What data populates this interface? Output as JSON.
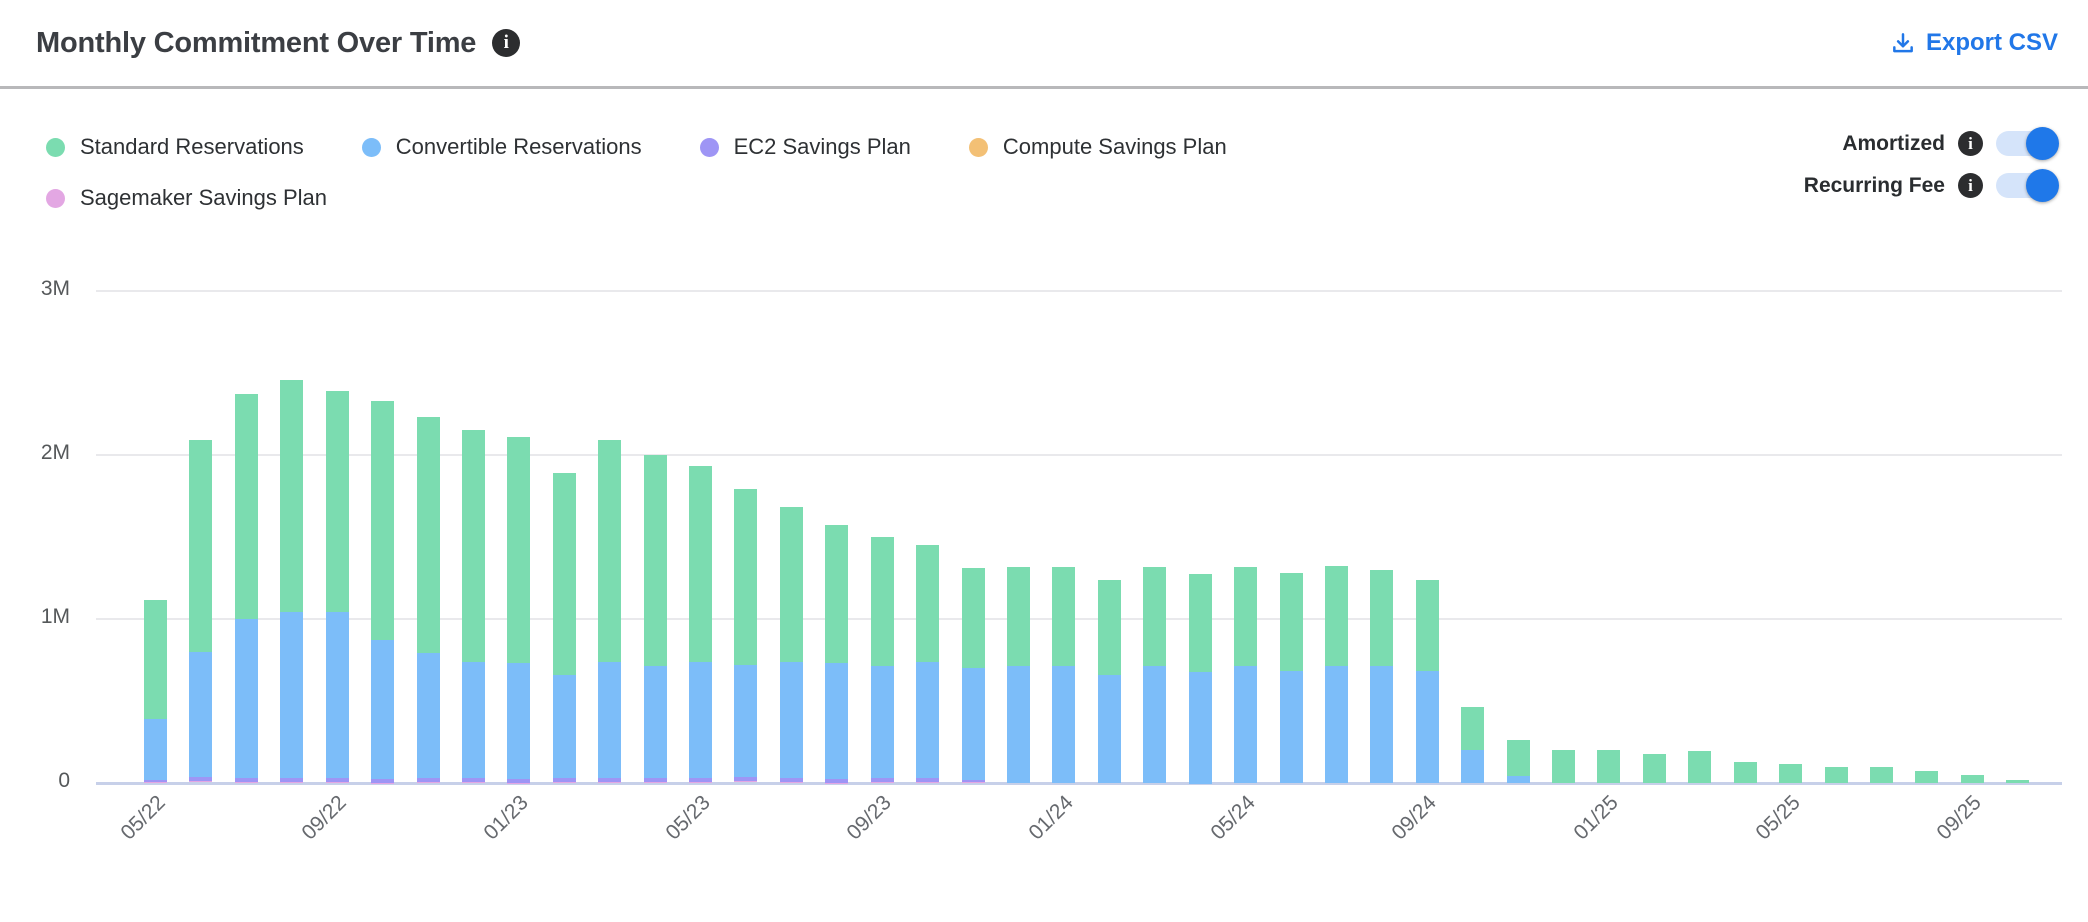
{
  "header": {
    "title": "Monthly Commitment Over Time",
    "export_label": "Export CSV"
  },
  "legend": {
    "items": [
      {
        "label": "Standard Reservations",
        "color": "#7bdcb0"
      },
      {
        "label": "Convertible Reservations",
        "color": "#7cbdf9"
      },
      {
        "label": "EC2 Savings Plan",
        "color": "#9e95f5"
      },
      {
        "label": "Compute Savings Plan",
        "color": "#f3c075"
      },
      {
        "label": "Sagemaker Savings Plan",
        "color": "#e3a7e3"
      }
    ]
  },
  "toggles": [
    {
      "label": "Amortized",
      "state": "on"
    },
    {
      "label": "Recurring Fee",
      "state": "on"
    }
  ],
  "accent_colors": {
    "link_blue": "#2177e8",
    "toggle_track": "#d5e4fa",
    "toggle_knob": "#1f78e9",
    "info_icon_bg": "#2c2d2f"
  },
  "chart_data": {
    "type": "bar",
    "stacked": true,
    "title": "Monthly Commitment Over Time",
    "xlabel": "",
    "ylabel": "",
    "ylim": [
      0,
      3000000
    ],
    "grid": "horizontal",
    "legend_position": "top",
    "y_axis": [
      {
        "label": "3M",
        "value": 3
      },
      {
        "label": "2M",
        "value": 2
      },
      {
        "label": "1M",
        "value": 1
      },
      {
        "label": "0",
        "value": 0
      }
    ],
    "x_ticks": [
      {
        "index": 0,
        "label": "05/22"
      },
      {
        "index": 4,
        "label": "09/22"
      },
      {
        "index": 8,
        "label": "01/23"
      },
      {
        "index": 12,
        "label": "05/23"
      },
      {
        "index": 16,
        "label": "09/23"
      },
      {
        "index": 20,
        "label": "01/24"
      },
      {
        "index": 24,
        "label": "05/24"
      },
      {
        "index": 28,
        "label": "09/24"
      },
      {
        "index": 32,
        "label": "01/25"
      },
      {
        "index": 36,
        "label": "05/25"
      },
      {
        "index": 40,
        "label": "09/25"
      }
    ],
    "categories": [
      "05/22",
      "06/22",
      "07/22",
      "08/22",
      "09/22",
      "10/22",
      "11/22",
      "12/22",
      "01/23",
      "02/23",
      "03/23",
      "04/23",
      "05/23",
      "06/23",
      "07/23",
      "08/23",
      "09/23",
      "10/23",
      "11/23",
      "12/23",
      "01/24",
      "02/24",
      "03/24",
      "04/24",
      "05/24",
      "06/24",
      "07/24",
      "08/24",
      "09/24",
      "10/24",
      "11/24",
      "12/24",
      "01/25",
      "02/25",
      "03/25",
      "04/25",
      "05/25",
      "06/25",
      "07/25",
      "08/25",
      "09/25",
      "10/25"
    ],
    "unit": "millions",
    "series": [
      {
        "name": "Sagemaker Savings Plan",
        "color": "#e3a7e3",
        "values": [
          0.008,
          0.008,
          0.008,
          0.008,
          0.008,
          0.008,
          0.008,
          0.008,
          0.008,
          0.008,
          0.008,
          0.008,
          0.008,
          0.008,
          0.008,
          0.008,
          0.008,
          0.008,
          0.008,
          0,
          0,
          0,
          0,
          0,
          0,
          0,
          0,
          0,
          0,
          0,
          0,
          0,
          0,
          0,
          0,
          0,
          0,
          0,
          0,
          0,
          0,
          0
        ]
      },
      {
        "name": "EC2 Savings Plan",
        "color": "#9e95f5",
        "values": [
          0.012,
          0.022,
          0.022,
          0.022,
          0.022,
          0.022,
          0.022,
          0.022,
          0.022,
          0.022,
          0.022,
          0.022,
          0.022,
          0.022,
          0.022,
          0.022,
          0.022,
          0.022,
          0.015,
          0,
          0,
          0,
          0,
          0,
          0,
          0,
          0,
          0,
          0,
          0,
          0,
          0,
          0,
          0,
          0,
          0,
          0,
          0,
          0,
          0,
          0,
          0
        ]
      },
      {
        "name": "Convertible Reservations",
        "color": "#7cbdf9",
        "values": [
          0.37,
          0.765,
          0.97,
          1.015,
          1.015,
          0.845,
          0.76,
          0.705,
          0.705,
          0.63,
          0.705,
          0.685,
          0.705,
          0.685,
          0.705,
          0.705,
          0.685,
          0.705,
          0.68,
          0.715,
          0.715,
          0.66,
          0.715,
          0.68,
          0.715,
          0.685,
          0.715,
          0.715,
          0.685,
          0.2,
          0.04,
          0,
          0,
          0,
          0,
          0,
          0,
          0,
          0,
          0,
          0,
          0
        ]
      },
      {
        "name": "Standard Reservations",
        "color": "#7bdcb0",
        "values": [
          0.725,
          1.295,
          1.37,
          1.415,
          1.345,
          1.455,
          1.44,
          1.415,
          1.375,
          1.23,
          1.355,
          1.285,
          1.195,
          1.075,
          0.945,
          0.84,
          0.785,
          0.715,
          0.61,
          0.605,
          0.605,
          0.58,
          0.605,
          0.595,
          0.605,
          0.595,
          0.61,
          0.585,
          0.555,
          0.265,
          0.22,
          0.2,
          0.2,
          0.175,
          0.195,
          0.125,
          0.115,
          0.1,
          0.1,
          0.075,
          0.05,
          0.018
        ]
      },
      {
        "name": "Compute Savings Plan",
        "color": "#f3c075",
        "values": [
          0,
          0,
          0,
          0,
          0,
          0,
          0,
          0,
          0,
          0,
          0,
          0,
          0,
          0,
          0,
          0,
          0,
          0,
          0,
          0,
          0,
          0,
          0,
          0,
          0,
          0,
          0,
          0,
          0,
          0,
          0,
          0,
          0,
          0,
          0,
          0,
          0,
          0,
          0,
          0,
          0,
          0
        ]
      }
    ]
  }
}
